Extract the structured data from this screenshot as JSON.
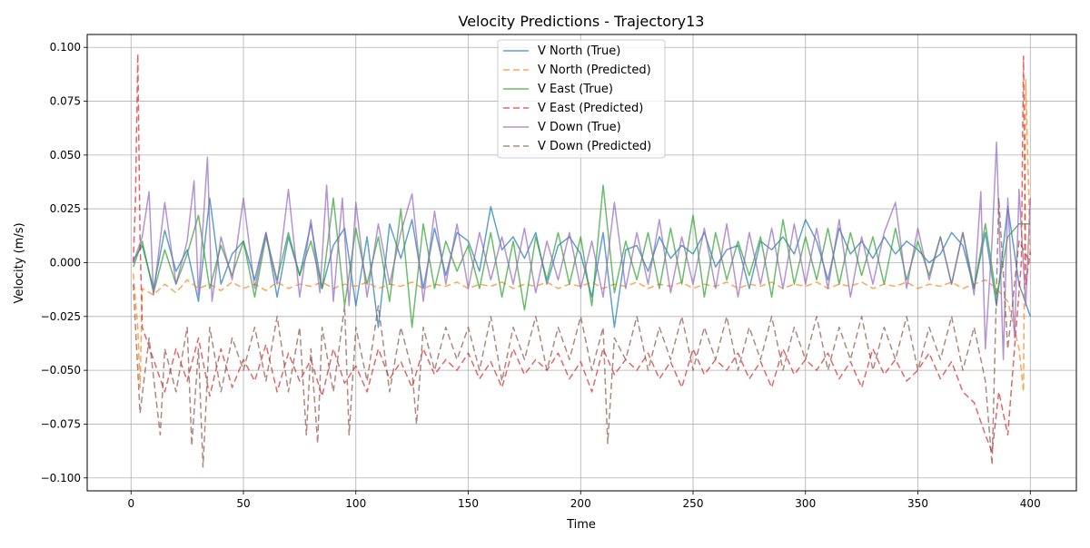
{
  "chart_data": {
    "type": "line",
    "title": "Velocity Predictions - Trajectory13",
    "xlabel": "Time",
    "ylabel": "Velocity (m/s)",
    "xlim": [
      -19.5,
      420.5
    ],
    "ylim": [
      -0.106,
      0.106
    ],
    "xticks": [
      0,
      50,
      100,
      150,
      200,
      250,
      300,
      350,
      400
    ],
    "yticks": [
      -0.1,
      -0.075,
      -0.05,
      -0.025,
      0.0,
      0.025,
      0.05,
      0.075,
      0.1
    ],
    "xtick_labels": [
      "0",
      "50",
      "100",
      "150",
      "200",
      "250",
      "300",
      "350",
      "400"
    ],
    "ytick_labels": [
      "−0.100",
      "−0.075",
      "−0.050",
      "−0.025",
      "0.000",
      "0.025",
      "0.050",
      "0.075",
      "0.100"
    ],
    "grid": true,
    "legend_position": "top-center",
    "series": [
      {
        "name": "V North (True)",
        "color": "#1f77b4",
        "dash": "solid",
        "x": [
          1,
          5,
          10,
          15,
          20,
          25,
          30,
          35,
          40,
          45,
          50,
          55,
          60,
          65,
          70,
          75,
          80,
          85,
          90,
          95,
          100,
          105,
          110,
          115,
          120,
          125,
          130,
          135,
          140,
          145,
          150,
          155,
          160,
          165,
          170,
          175,
          180,
          185,
          190,
          195,
          200,
          205,
          210,
          215,
          220,
          225,
          230,
          235,
          240,
          245,
          250,
          255,
          260,
          265,
          270,
          275,
          280,
          285,
          290,
          295,
          300,
          305,
          310,
          315,
          320,
          325,
          330,
          335,
          340,
          345,
          350,
          355,
          360,
          365,
          370,
          375,
          380,
          385,
          390,
          395,
          400
        ],
        "y": [
          0.001,
          0.008,
          -0.012,
          0.015,
          -0.004,
          0.006,
          -0.018,
          0.03,
          -0.01,
          0.004,
          0.01,
          -0.008,
          0.014,
          -0.016,
          0.012,
          -0.006,
          0.018,
          -0.012,
          0.008,
          0.016,
          -0.02,
          0.012,
          -0.03,
          0.018,
          0.002,
          0.02,
          -0.012,
          0.016,
          -0.006,
          0.014,
          0.01,
          -0.004,
          0.026,
          0.006,
          0.012,
          0.002,
          0.014,
          -0.01,
          0.008,
          0.012,
          0.004,
          -0.016,
          0.014,
          -0.03,
          0.006,
          0.008,
          -0.004,
          0.012,
          0.002,
          0.008,
          0.004,
          0.014,
          -0.002,
          0.006,
          0.008,
          -0.012,
          0.01,
          0.006,
          0.012,
          0.004,
          0.02,
          0.01,
          -0.008,
          0.016,
          0.004,
          0.01,
          0.002,
          0.012,
          0.004,
          0.01,
          0.006,
          0.0,
          0.004,
          0.014,
          0.008,
          -0.012,
          0.014,
          -0.02,
          0.026,
          -0.01,
          -0.025
        ]
      },
      {
        "name": "V North (Predicted)",
        "color": "#ff7f0e",
        "dash": "7,4",
        "x": [
          1,
          3,
          4,
          5,
          10,
          15,
          20,
          25,
          30,
          35,
          40,
          45,
          50,
          55,
          60,
          65,
          70,
          75,
          80,
          85,
          90,
          95,
          100,
          105,
          110,
          115,
          120,
          125,
          130,
          135,
          140,
          145,
          150,
          155,
          160,
          165,
          170,
          175,
          180,
          185,
          190,
          195,
          200,
          205,
          210,
          215,
          220,
          225,
          230,
          235,
          240,
          245,
          250,
          255,
          260,
          265,
          270,
          275,
          280,
          285,
          290,
          295,
          300,
          305,
          310,
          315,
          320,
          325,
          330,
          335,
          340,
          345,
          350,
          355,
          360,
          365,
          370,
          375,
          380,
          385,
          390,
          395,
          397,
          398,
          400
        ],
        "y": [
          -0.005,
          -0.03,
          -0.058,
          -0.012,
          -0.015,
          -0.01,
          -0.014,
          -0.008,
          -0.012,
          -0.01,
          -0.013,
          -0.009,
          -0.012,
          -0.01,
          -0.013,
          -0.009,
          -0.012,
          -0.01,
          -0.011,
          -0.009,
          -0.012,
          -0.01,
          -0.011,
          -0.009,
          -0.012,
          -0.01,
          -0.011,
          -0.009,
          -0.012,
          -0.01,
          -0.011,
          -0.009,
          -0.012,
          -0.01,
          -0.011,
          -0.009,
          -0.012,
          -0.01,
          -0.011,
          -0.009,
          -0.012,
          -0.01,
          -0.011,
          -0.009,
          -0.012,
          -0.01,
          -0.011,
          -0.009,
          -0.012,
          -0.01,
          -0.011,
          -0.009,
          -0.012,
          -0.01,
          -0.011,
          -0.009,
          -0.012,
          -0.01,
          -0.011,
          -0.009,
          -0.012,
          -0.01,
          -0.011,
          -0.009,
          -0.012,
          -0.01,
          -0.011,
          -0.009,
          -0.012,
          -0.01,
          -0.011,
          -0.009,
          -0.012,
          -0.01,
          -0.011,
          -0.009,
          -0.012,
          -0.01,
          -0.008,
          -0.012,
          -0.018,
          -0.04,
          -0.06,
          0.085,
          0.002
        ]
      },
      {
        "name": "V East (True)",
        "color": "#2ca02c",
        "dash": "solid",
        "x": [
          1,
          5,
          10,
          15,
          20,
          25,
          30,
          35,
          40,
          45,
          50,
          55,
          60,
          65,
          70,
          75,
          80,
          85,
          90,
          95,
          100,
          105,
          110,
          115,
          120,
          125,
          130,
          135,
          140,
          145,
          150,
          155,
          160,
          165,
          170,
          175,
          180,
          185,
          190,
          195,
          200,
          205,
          210,
          215,
          220,
          225,
          230,
          235,
          240,
          245,
          250,
          255,
          260,
          265,
          270,
          275,
          280,
          285,
          290,
          295,
          300,
          305,
          310,
          315,
          320,
          325,
          330,
          335,
          340,
          345,
          350,
          355,
          360,
          365,
          370,
          375,
          380,
          385,
          390,
          395,
          400
        ],
        "y": [
          -0.002,
          0.01,
          -0.014,
          0.006,
          -0.01,
          0.004,
          0.022,
          -0.012,
          0.008,
          -0.006,
          0.01,
          -0.016,
          0.012,
          -0.008,
          0.014,
          -0.006,
          0.01,
          -0.012,
          0.03,
          -0.02,
          0.016,
          -0.01,
          0.012,
          -0.018,
          0.025,
          -0.03,
          0.018,
          -0.012,
          0.01,
          -0.004,
          0.008,
          -0.012,
          0.014,
          -0.016,
          0.01,
          -0.022,
          0.012,
          -0.008,
          0.014,
          -0.01,
          0.012,
          -0.02,
          0.036,
          -0.014,
          0.01,
          -0.008,
          0.014,
          -0.012,
          0.016,
          -0.01,
          0.022,
          -0.016,
          0.014,
          -0.008,
          0.01,
          -0.006,
          0.012,
          -0.016,
          0.02,
          -0.01,
          0.012,
          -0.008,
          0.016,
          -0.01,
          0.014,
          -0.006,
          0.012,
          -0.01,
          0.016,
          -0.008,
          0.01,
          -0.006,
          0.012,
          -0.01,
          0.014,
          -0.012,
          0.018,
          -0.016,
          0.012,
          0.018,
          0.018
        ]
      },
      {
        "name": "V East (Predicted)",
        "color": "#d62728",
        "dash": "7,4",
        "x": [
          1,
          2,
          3,
          4,
          5,
          10,
          15,
          20,
          25,
          30,
          35,
          40,
          45,
          50,
          55,
          60,
          65,
          70,
          75,
          80,
          85,
          90,
          95,
          100,
          105,
          110,
          115,
          120,
          125,
          130,
          135,
          140,
          145,
          150,
          155,
          160,
          165,
          170,
          175,
          180,
          185,
          190,
          195,
          200,
          205,
          210,
          215,
          220,
          225,
          230,
          235,
          240,
          245,
          250,
          255,
          260,
          265,
          270,
          275,
          280,
          285,
          290,
          295,
          300,
          305,
          310,
          315,
          320,
          325,
          330,
          335,
          340,
          345,
          350,
          355,
          360,
          365,
          370,
          375,
          380,
          383,
          386,
          390,
          393,
          396,
          397,
          398,
          400
        ],
        "y": [
          0.0,
          0.03,
          0.097,
          0.01,
          -0.03,
          -0.045,
          -0.06,
          -0.04,
          -0.055,
          -0.035,
          -0.062,
          -0.04,
          -0.058,
          -0.045,
          -0.055,
          -0.038,
          -0.06,
          -0.042,
          -0.055,
          -0.045,
          -0.062,
          -0.04,
          -0.056,
          -0.048,
          -0.06,
          -0.04,
          -0.054,
          -0.046,
          -0.058,
          -0.04,
          -0.052,
          -0.045,
          -0.05,
          -0.042,
          -0.054,
          -0.046,
          -0.058,
          -0.04,
          -0.052,
          -0.045,
          -0.05,
          -0.042,
          -0.054,
          -0.046,
          -0.06,
          -0.04,
          -0.052,
          -0.045,
          -0.05,
          -0.042,
          -0.054,
          -0.046,
          -0.058,
          -0.04,
          -0.052,
          -0.045,
          -0.05,
          -0.042,
          -0.054,
          -0.046,
          -0.058,
          -0.04,
          -0.052,
          -0.045,
          -0.05,
          -0.042,
          -0.054,
          -0.046,
          -0.058,
          -0.04,
          -0.052,
          -0.045,
          -0.055,
          -0.05,
          -0.042,
          -0.054,
          -0.046,
          -0.06,
          -0.065,
          -0.08,
          -0.088,
          -0.06,
          -0.08,
          -0.04,
          0.0,
          0.096,
          -0.01,
          0.005
        ]
      },
      {
        "name": "V Down (True)",
        "color": "#9467bd",
        "dash": "solid",
        "x": [
          1,
          5,
          8,
          10,
          15,
          20,
          25,
          28,
          30,
          34,
          36,
          40,
          45,
          50,
          55,
          60,
          65,
          70,
          75,
          80,
          84,
          87,
          90,
          94,
          97,
          100,
          105,
          110,
          115,
          120,
          125,
          130,
          135,
          140,
          145,
          150,
          155,
          160,
          165,
          170,
          175,
          180,
          185,
          190,
          195,
          200,
          205,
          210,
          215,
          220,
          225,
          230,
          235,
          240,
          245,
          250,
          255,
          260,
          265,
          270,
          275,
          280,
          285,
          290,
          295,
          300,
          305,
          310,
          315,
          320,
          325,
          330,
          335,
          340,
          345,
          350,
          355,
          360,
          365,
          370,
          375,
          378,
          380,
          383,
          385,
          388,
          390,
          393,
          395,
          398,
          400
        ],
        "y": [
          0.0,
          0.012,
          0.033,
          -0.015,
          0.028,
          -0.01,
          0.01,
          0.038,
          -0.015,
          0.049,
          -0.018,
          0.012,
          -0.008,
          0.03,
          -0.012,
          0.014,
          -0.01,
          0.034,
          -0.016,
          0.02,
          -0.014,
          0.036,
          -0.018,
          0.03,
          -0.02,
          0.028,
          -0.016,
          0.018,
          -0.01,
          0.014,
          0.032,
          -0.018,
          0.024,
          -0.01,
          0.018,
          -0.012,
          0.014,
          -0.008,
          0.012,
          -0.01,
          0.016,
          -0.014,
          0.01,
          -0.008,
          0.014,
          -0.012,
          0.01,
          -0.016,
          0.028,
          -0.012,
          0.014,
          -0.01,
          0.02,
          -0.014,
          0.012,
          -0.01,
          0.016,
          -0.012,
          0.018,
          -0.016,
          0.014,
          -0.01,
          0.016,
          -0.012,
          0.018,
          -0.01,
          0.016,
          -0.012,
          0.02,
          -0.016,
          0.012,
          -0.01,
          0.014,
          0.028,
          -0.012,
          0.016,
          -0.008,
          0.012,
          -0.01,
          0.014,
          -0.015,
          0.033,
          -0.04,
          0.01,
          0.056,
          -0.045,
          0.03,
          -0.035,
          0.034,
          -0.02,
          0.03
        ]
      },
      {
        "name": "V Down (Predicted)",
        "color": "#8c564b",
        "dash": "7,4",
        "x": [
          1,
          4,
          8,
          13,
          15,
          20,
          25,
          27,
          30,
          32,
          35,
          40,
          45,
          50,
          55,
          60,
          65,
          70,
          75,
          78,
          80,
          83,
          85,
          90,
          95,
          97,
          100,
          105,
          110,
          115,
          120,
          125,
          127,
          130,
          135,
          140,
          145,
          150,
          155,
          160,
          165,
          170,
          175,
          180,
          185,
          190,
          195,
          200,
          205,
          210,
          212,
          215,
          220,
          225,
          230,
          235,
          240,
          245,
          250,
          255,
          260,
          265,
          270,
          275,
          280,
          285,
          290,
          295,
          300,
          305,
          310,
          315,
          320,
          325,
          330,
          335,
          340,
          345,
          350,
          355,
          360,
          365,
          370,
          375,
          380,
          383,
          386,
          390,
          395,
          400
        ],
        "y": [
          -0.01,
          -0.07,
          -0.035,
          -0.08,
          -0.04,
          -0.06,
          -0.03,
          -0.085,
          -0.04,
          -0.095,
          -0.03,
          -0.06,
          -0.035,
          -0.05,
          -0.03,
          -0.055,
          -0.025,
          -0.06,
          -0.03,
          -0.08,
          -0.04,
          -0.084,
          -0.03,
          -0.06,
          -0.02,
          -0.08,
          -0.03,
          -0.055,
          -0.02,
          -0.06,
          -0.03,
          -0.05,
          -0.075,
          -0.03,
          -0.05,
          -0.03,
          -0.045,
          -0.03,
          -0.05,
          -0.025,
          -0.055,
          -0.03,
          -0.045,
          -0.025,
          -0.05,
          -0.03,
          -0.045,
          -0.025,
          -0.05,
          -0.03,
          -0.084,
          -0.035,
          -0.045,
          -0.025,
          -0.05,
          -0.03,
          -0.045,
          -0.025,
          -0.05,
          -0.03,
          -0.045,
          -0.025,
          -0.05,
          -0.03,
          -0.045,
          -0.025,
          -0.05,
          -0.03,
          -0.045,
          -0.025,
          -0.05,
          -0.03,
          -0.045,
          -0.025,
          -0.05,
          -0.03,
          -0.045,
          -0.025,
          -0.05,
          -0.03,
          -0.045,
          -0.025,
          -0.05,
          -0.03,
          -0.055,
          -0.094,
          0.03,
          -0.04,
          0.01,
          0.0
        ]
      }
    ]
  }
}
